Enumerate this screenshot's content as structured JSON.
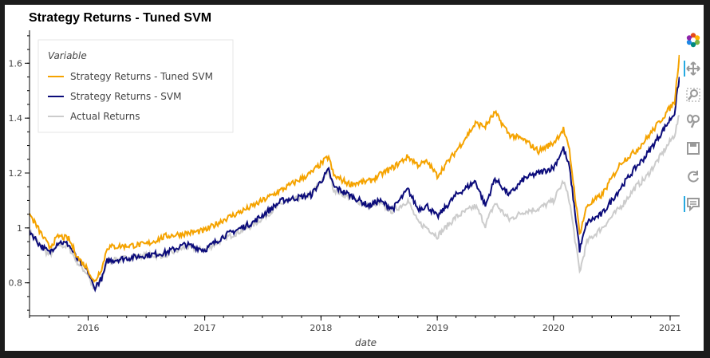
{
  "chart_data": {
    "type": "line",
    "title": "Strategy Returns - Tuned SVM",
    "xlabel": "date",
    "ylabel": "",
    "xlim": [
      "2015-07-01",
      "2021-01-31"
    ],
    "ylim": [
      0.68,
      1.72
    ],
    "x_ticks": [
      "2016",
      "2017",
      "2018",
      "2019",
      "2020",
      "2021"
    ],
    "y_ticks": [
      "0.8",
      "1",
      "1.2",
      "1.4",
      "1.6"
    ],
    "legend": {
      "title": "Variable",
      "placement": "top-left"
    },
    "grid": false,
    "series": [
      {
        "name": "Strategy Returns - Tuned SVM",
        "color": "#f5a300",
        "points": [
          [
            "2015-07-01",
            1.05
          ],
          [
            "2015-08-01",
            0.99
          ],
          [
            "2015-09-01",
            0.93
          ],
          [
            "2015-10-01",
            0.97
          ],
          [
            "2015-11-01",
            0.96
          ],
          [
            "2015-12-01",
            0.89
          ],
          [
            "2016-01-01",
            0.85
          ],
          [
            "2016-01-20",
            0.8
          ],
          [
            "2016-02-15",
            0.86
          ],
          [
            "2016-03-01",
            0.93
          ],
          [
            "2016-07-01",
            0.94
          ],
          [
            "2016-09-01",
            0.97
          ],
          [
            "2016-11-01",
            0.98
          ],
          [
            "2017-01-01",
            0.99
          ],
          [
            "2017-03-01",
            1.03
          ],
          [
            "2017-06-01",
            1.08
          ],
          [
            "2017-09-01",
            1.14
          ],
          [
            "2017-12-01",
            1.2
          ],
          [
            "2018-01-25",
            1.26
          ],
          [
            "2018-02-10",
            1.19
          ],
          [
            "2018-04-01",
            1.16
          ],
          [
            "2018-06-01",
            1.17
          ],
          [
            "2018-07-01",
            1.19
          ],
          [
            "2018-08-15",
            1.22
          ],
          [
            "2018-10-01",
            1.26
          ],
          [
            "2018-11-01",
            1.23
          ],
          [
            "2018-12-01",
            1.24
          ],
          [
            "2019-01-01",
            1.19
          ],
          [
            "2019-03-01",
            1.28
          ],
          [
            "2019-05-01",
            1.38
          ],
          [
            "2019-06-01",
            1.37
          ],
          [
            "2019-07-01",
            1.42
          ],
          [
            "2019-08-15",
            1.34
          ],
          [
            "2019-10-01",
            1.32
          ],
          [
            "2019-11-15",
            1.28
          ],
          [
            "2020-01-01",
            1.31
          ],
          [
            "2020-02-01",
            1.36
          ],
          [
            "2020-02-20",
            1.28
          ],
          [
            "2020-03-23",
            0.98
          ],
          [
            "2020-04-15",
            1.08
          ],
          [
            "2020-06-01",
            1.12
          ],
          [
            "2020-08-01",
            1.24
          ],
          [
            "2020-09-15",
            1.28
          ],
          [
            "2020-10-15",
            1.32
          ],
          [
            "2020-12-01",
            1.39
          ],
          [
            "2021-01-15",
            1.46
          ],
          [
            "2021-01-30",
            1.63
          ]
        ]
      },
      {
        "name": "Strategy Returns - SVM",
        "color": "#0b0b7a",
        "points": [
          [
            "2015-07-01",
            0.99
          ],
          [
            "2015-08-01",
            0.94
          ],
          [
            "2015-09-01",
            0.91
          ],
          [
            "2015-10-01",
            0.95
          ],
          [
            "2015-11-01",
            0.94
          ],
          [
            "2015-12-01",
            0.88
          ],
          [
            "2016-01-01",
            0.84
          ],
          [
            "2016-01-20",
            0.78
          ],
          [
            "2016-02-15",
            0.82
          ],
          [
            "2016-03-01",
            0.88
          ],
          [
            "2016-07-01",
            0.9
          ],
          [
            "2016-09-01",
            0.91
          ],
          [
            "2016-11-01",
            0.94
          ],
          [
            "2017-01-01",
            0.92
          ],
          [
            "2017-03-01",
            0.97
          ],
          [
            "2017-06-01",
            1.02
          ],
          [
            "2017-09-01",
            1.1
          ],
          [
            "2017-12-01",
            1.12
          ],
          [
            "2018-01-25",
            1.21
          ],
          [
            "2018-02-10",
            1.15
          ],
          [
            "2018-04-01",
            1.12
          ],
          [
            "2018-06-01",
            1.08
          ],
          [
            "2018-07-01",
            1.1
          ],
          [
            "2018-08-15",
            1.07
          ],
          [
            "2018-10-01",
            1.14
          ],
          [
            "2018-11-01",
            1.07
          ],
          [
            "2018-12-01",
            1.08
          ],
          [
            "2019-01-01",
            1.04
          ],
          [
            "2019-03-01",
            1.12
          ],
          [
            "2019-05-01",
            1.17
          ],
          [
            "2019-06-01",
            1.08
          ],
          [
            "2019-07-01",
            1.18
          ],
          [
            "2019-08-15",
            1.12
          ],
          [
            "2019-10-01",
            1.18
          ],
          [
            "2019-11-15",
            1.2
          ],
          [
            "2020-01-01",
            1.22
          ],
          [
            "2020-02-01",
            1.29
          ],
          [
            "2020-02-20",
            1.22
          ],
          [
            "2020-03-23",
            0.92
          ],
          [
            "2020-04-15",
            1.02
          ],
          [
            "2020-06-01",
            1.05
          ],
          [
            "2020-08-01",
            1.15
          ],
          [
            "2020-09-15",
            1.22
          ],
          [
            "2020-10-15",
            1.26
          ],
          [
            "2020-12-01",
            1.34
          ],
          [
            "2021-01-15",
            1.42
          ],
          [
            "2021-01-30",
            1.55
          ]
        ]
      },
      {
        "name": "Actual Returns",
        "color": "#cccccc",
        "points": [
          [
            "2015-07-01",
            0.99
          ],
          [
            "2015-08-01",
            0.94
          ],
          [
            "2015-09-01",
            0.9
          ],
          [
            "2015-10-01",
            0.94
          ],
          [
            "2015-11-01",
            0.93
          ],
          [
            "2015-12-01",
            0.87
          ],
          [
            "2016-01-01",
            0.83
          ],
          [
            "2016-01-20",
            0.77
          ],
          [
            "2016-02-15",
            0.82
          ],
          [
            "2016-03-01",
            0.88
          ],
          [
            "2016-07-01",
            0.9
          ],
          [
            "2016-09-01",
            0.9
          ],
          [
            "2016-11-01",
            0.93
          ],
          [
            "2017-01-01",
            0.92
          ],
          [
            "2017-03-01",
            0.96
          ],
          [
            "2017-06-01",
            1.01
          ],
          [
            "2017-09-01",
            1.09
          ],
          [
            "2017-12-01",
            1.12
          ],
          [
            "2018-01-25",
            1.21
          ],
          [
            "2018-02-10",
            1.14
          ],
          [
            "2018-04-01",
            1.11
          ],
          [
            "2018-06-01",
            1.08
          ],
          [
            "2018-07-01",
            1.09
          ],
          [
            "2018-08-15",
            1.06
          ],
          [
            "2018-10-01",
            1.1
          ],
          [
            "2018-11-01",
            1.02
          ],
          [
            "2018-12-01",
            1.0
          ],
          [
            "2019-01-01",
            0.97
          ],
          [
            "2019-03-01",
            1.04
          ],
          [
            "2019-05-01",
            1.08
          ],
          [
            "2019-06-01",
            1.01
          ],
          [
            "2019-07-01",
            1.09
          ],
          [
            "2019-08-15",
            1.03
          ],
          [
            "2019-10-01",
            1.06
          ],
          [
            "2019-11-15",
            1.07
          ],
          [
            "2020-01-01",
            1.1
          ],
          [
            "2020-02-01",
            1.17
          ],
          [
            "2020-02-20",
            1.1
          ],
          [
            "2020-03-23",
            0.84
          ],
          [
            "2020-04-15",
            0.95
          ],
          [
            "2020-06-01",
            1.0
          ],
          [
            "2020-08-01",
            1.08
          ],
          [
            "2020-09-15",
            1.15
          ],
          [
            "2020-10-15",
            1.18
          ],
          [
            "2020-12-01",
            1.26
          ],
          [
            "2021-01-15",
            1.34
          ],
          [
            "2021-01-30",
            1.41
          ]
        ]
      }
    ]
  },
  "toolbar": {
    "tools": [
      "logo-icon",
      "pan-icon",
      "box-zoom-icon",
      "wheel-zoom-icon",
      "save-icon",
      "reset-icon",
      "hover-icon"
    ],
    "active_color": "#26aae1"
  }
}
